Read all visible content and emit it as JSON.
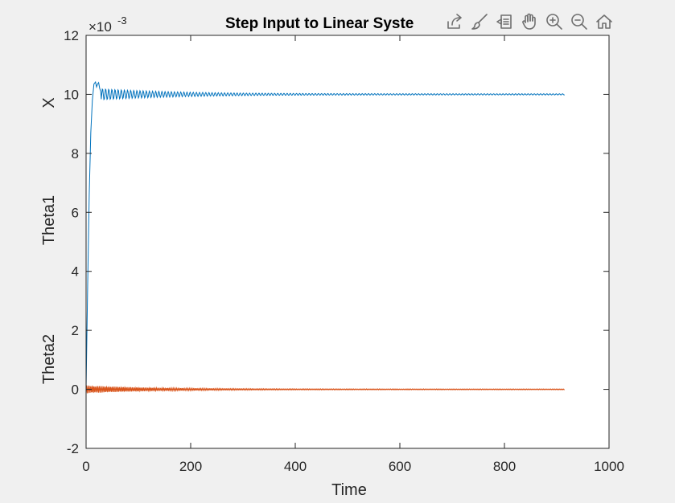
{
  "chart_data": {
    "type": "line",
    "title": "Step Input to Linear Syste",
    "xlabel": "Time",
    "ylabels": [
      "X",
      "Theta1",
      "Theta2"
    ],
    "y_exponent_base": "×10",
    "y_exponent_power": "-3",
    "xlim": [
      0,
      1000
    ],
    "ylim": [
      -2,
      12
    ],
    "y_scale_note": "values shown in units of 1e-3",
    "xticks": [
      0,
      200,
      400,
      600,
      800,
      1000
    ],
    "yticks": [
      -2,
      0,
      2,
      4,
      6,
      8,
      10,
      12
    ],
    "grid": false,
    "series": [
      {
        "color": "#0072BD",
        "x_end": 915,
        "final_value": 10,
        "points": [
          [
            0,
            0
          ],
          [
            3,
            3.5
          ],
          [
            6,
            6.6
          ],
          [
            9,
            8.7
          ],
          [
            12,
            9.8
          ],
          [
            15,
            10.35
          ],
          [
            18,
            10.42
          ],
          [
            20,
            10.25
          ],
          [
            22,
            10.35
          ],
          [
            24,
            10.4
          ],
          [
            26,
            10.2
          ],
          [
            28,
            10.1
          ]
        ]
      },
      {
        "color": "#D95319",
        "x_end": 915,
        "final_value": 0
      }
    ]
  },
  "toolbar": {
    "buttons": [
      {
        "name": "export-icon"
      },
      {
        "name": "brush-icon"
      },
      {
        "name": "datatip-icon"
      },
      {
        "name": "pan-icon"
      },
      {
        "name": "zoom-in-icon"
      },
      {
        "name": "zoom-out-icon"
      },
      {
        "name": "home-icon"
      }
    ]
  }
}
